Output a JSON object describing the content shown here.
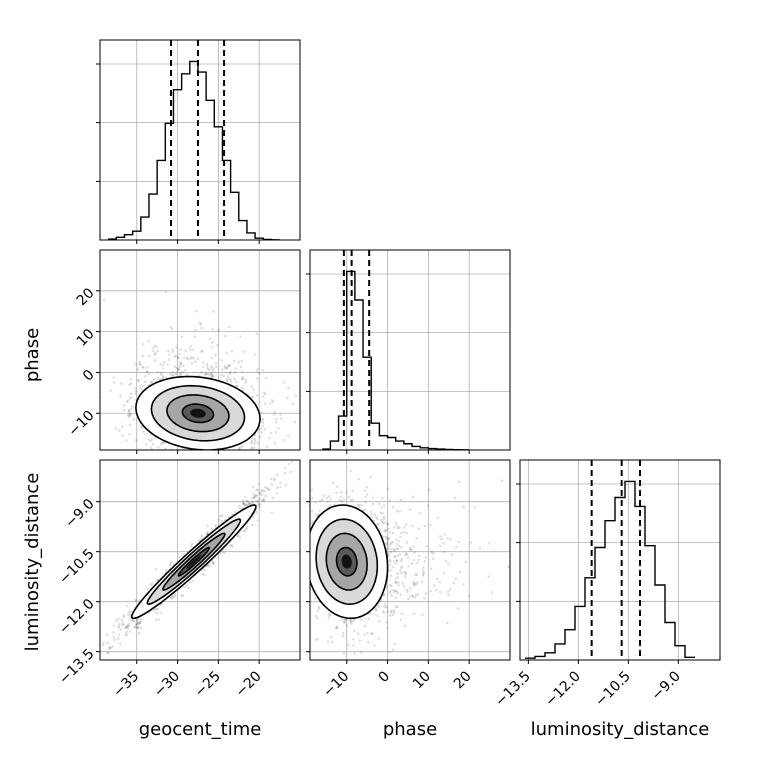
{
  "chart_data": {
    "type": "corner",
    "parameters": [
      "geocent_time",
      "phase",
      "luminosity_distance"
    ],
    "axes": {
      "geocent_time": {
        "range": [
          -39.5,
          -15.0
        ],
        "ticks": [
          -35,
          -30,
          -25,
          -20
        ],
        "tick_labels": [
          "−35",
          "−30",
          "−25",
          "−20"
        ]
      },
      "phase": {
        "range": [
          -19.0,
          30.0
        ],
        "ticks": [
          -10,
          0,
          10,
          20
        ],
        "tick_labels": [
          "−10",
          "0",
          "10",
          "20"
        ]
      },
      "luminosity_distance": {
        "range": [
          -13.75,
          -7.75
        ],
        "ticks": [
          -13.5,
          -12.0,
          -10.5,
          -9.0
        ],
        "tick_labels": [
          "−13.5",
          "−12.0",
          "−10.5",
          "−9.0"
        ]
      }
    },
    "marginals": [
      {
        "parameter": "geocent_time",
        "bin_edges": [
          -38.5,
          -37.5,
          -36.5,
          -35.5,
          -34.5,
          -33.5,
          -32.5,
          -31.5,
          -30.5,
          -29.5,
          -28.5,
          -27.5,
          -26.5,
          -25.5,
          -24.5,
          -23.5,
          -22.5,
          -21.5,
          -20.5,
          -19.5,
          -18.5,
          -17.5
        ],
        "counts": [
          0.5,
          1.5,
          3,
          5,
          13,
          26,
          45,
          66,
          85,
          94,
          101,
          95,
          79,
          64,
          45,
          27,
          11,
          4,
          1,
          0.3,
          0.1
        ],
        "count_max": 101,
        "quantile_lines": [
          -30.8,
          -27.5,
          -24.3
        ],
        "count_ticks_fraction": [
          0.293,
          0.587,
          0.88
        ]
      },
      {
        "parameter": "phase",
        "bin_edges": [
          -16.0,
          -14.0,
          -12.0,
          -10.0,
          -8.0,
          -6.0,
          -4.0,
          -2.0,
          0.0,
          2.0,
          4.0,
          6.0,
          8.0,
          10.0,
          12.0,
          14.0,
          16.0,
          18.0,
          20.0
        ],
        "counts": [
          0.5,
          5,
          19,
          100,
          84,
          52,
          15,
          8,
          7,
          5,
          3.5,
          2,
          1.2,
          0.8,
          0.5,
          0.3,
          0.2,
          0.1
        ],
        "count_max": 100,
        "quantile_lines": [
          -10.7,
          -8.8,
          -4.5
        ],
        "count_ticks_fraction": [
          0.293,
          0.587,
          0.88
        ]
      },
      {
        "parameter": "luminosity_distance",
        "bin_edges": [
          -13.6,
          -13.3,
          -13.0,
          -12.7,
          -12.4,
          -12.1,
          -11.8,
          -11.5,
          -11.2,
          -10.9,
          -10.6,
          -10.3,
          -10.0,
          -9.7,
          -9.4,
          -9.1,
          -8.8,
          -8.5
        ],
        "counts": [
          1,
          2,
          4,
          9,
          17,
          30,
          46,
          63,
          78,
          91,
          100,
          86,
          64,
          42,
          21,
          8,
          1.5
        ],
        "count_max": 100,
        "quantile_lines": [
          -11.6,
          -10.7,
          -10.15
        ],
        "count_ticks_fraction": [
          0.293,
          0.587,
          0.88
        ]
      }
    ],
    "joint": [
      {
        "x": "geocent_time",
        "y": "phase",
        "peak": [
          -27.5,
          -10
        ],
        "spread": [
          3.8,
          4.5
        ],
        "correlation": -0.15,
        "scatter_points": 1500,
        "contour_levels_sigma": [
          0.5,
          1.0,
          1.5,
          2.0
        ]
      },
      {
        "x": "geocent_time",
        "y": "luminosity_distance",
        "peak": [
          -28.0,
          -10.8
        ],
        "spread": [
          3.8,
          0.85
        ],
        "correlation": 0.97,
        "scatter_points": 1500,
        "contour_levels_sigma": [
          0.5,
          1.0,
          1.5,
          2.0
        ]
      },
      {
        "x": "phase",
        "y": "luminosity_distance",
        "peak": [
          -10,
          -10.8
        ],
        "spread": [
          5.0,
          0.85
        ],
        "correlation": -0.1,
        "scatter_points": 1500,
        "contour_levels_sigma": [
          0.5,
          1.0,
          1.5,
          2.0
        ]
      }
    ],
    "grid": true
  }
}
